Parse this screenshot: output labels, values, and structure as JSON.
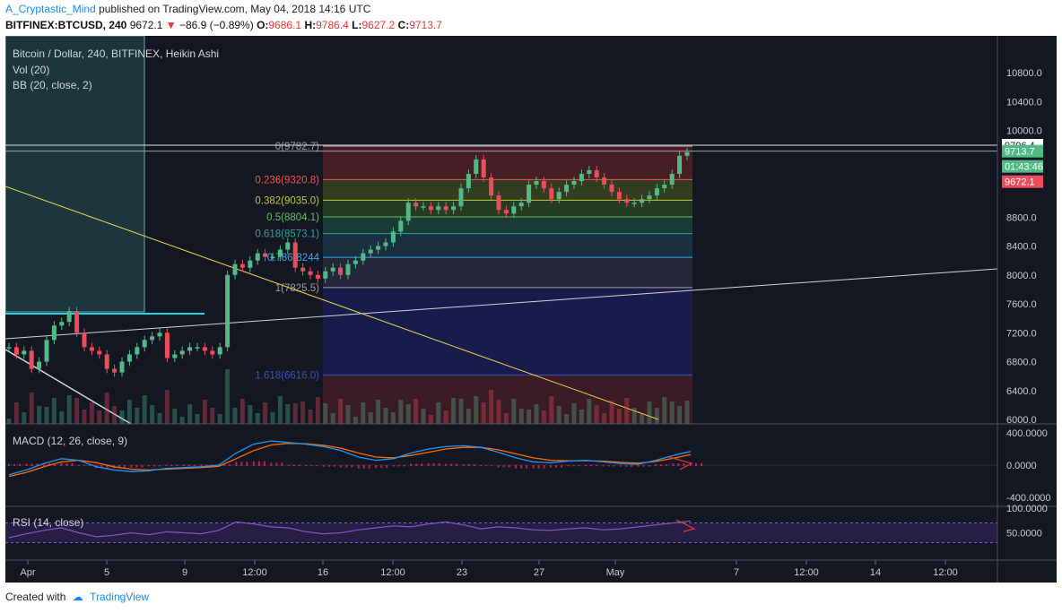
{
  "header": {
    "author": "A_Cryptastic_Mind",
    "published_on": "published on TradingView.com, May 04, 2018 14:16 UTC",
    "symbol": "BITFINEX:BTCUSD, 240",
    "last": "9672.1",
    "change": "−86.9 (−0.89%)",
    "o_label": "O:",
    "o_value": "9686.1",
    "h_label": "H:",
    "h_value": "9786.4",
    "l_label": "L:",
    "l_value": "9627.2",
    "c_label": "C:",
    "c_value": "9713.7"
  },
  "legend": {
    "line1": "Bitcoin / Dollar, 240, BITFINEX, Heikin Ashi",
    "line2": "Vol (20)",
    "line3": "BB (20, close, 2)"
  },
  "footer": {
    "created_with": "Created with",
    "brand": "TradingView"
  },
  "colors": {
    "background": "#131722",
    "up": "#53b987",
    "down": "#eb4d5c",
    "trend_yellow": "#e8d44d",
    "trend_white": "#d1d4dc",
    "cyan": "#22d3ee",
    "macd": "#2196f3",
    "signal": "#ff6d00",
    "rsi": "#7e57c2"
  },
  "chart_data": [
    {
      "type": "candlestick",
      "title": "Bitcoin / Dollar, 240, BITFINEX, Heikin Ashi",
      "ylim": [
        6000,
        11000
      ],
      "y_ticks": [
        "10800.0",
        "10400.0",
        "10000.0",
        "8800.0",
        "8400.0",
        "8000.0",
        "7600.0",
        "7200.0",
        "6800.0",
        "6400.0",
        "6000.0"
      ],
      "x_ticks": [
        "Apr",
        "5",
        "9",
        "12:00",
        "16",
        "12:00",
        "23",
        "27",
        "May",
        "7",
        "12:00",
        "14",
        "12:00"
      ],
      "price_labels": [
        {
          "text": "9796.4",
          "style": "white"
        },
        {
          "text": "9713.7",
          "style": "green"
        },
        {
          "text": "01:43:46",
          "style": "green"
        },
        {
          "text": "9672.1",
          "style": "red"
        }
      ],
      "fibonacci": [
        {
          "level": "0",
          "price": 9782.7,
          "label": "0(9782.7)",
          "color": "#9e9e9e"
        },
        {
          "level": "0.236",
          "price": 9320.8,
          "label": "0.236(9320.8)",
          "color": "#ef5350"
        },
        {
          "level": "0.382",
          "price": 9035.0,
          "label": "0.382(9035.0)",
          "color": "#c0ca33"
        },
        {
          "level": "0.5",
          "price": 8804.1,
          "label": "0.5(8804.1)",
          "color": "#66bb6a"
        },
        {
          "level": "0.618",
          "price": 8573.1,
          "label": "0.618(8573.1)",
          "color": "#26a69a"
        },
        {
          "level": "0.786",
          "price": 8244,
          "label": "0.786(8244",
          "color": "#42a5f5"
        },
        {
          "level": "1",
          "price": 7825.5,
          "label": "1(7825.5)",
          "color": "#9e9e9e"
        },
        {
          "level": "1.618",
          "price": 6616.0,
          "label": "1.618(6616.0)",
          "color": "#3f51b5"
        }
      ],
      "horizontal_lines": [
        9796.4,
        9713.7
      ],
      "close_approx": [
        7000,
        6900,
        6950,
        6700,
        6800,
        7100,
        7300,
        7350,
        7500,
        7200,
        7000,
        6950,
        6900,
        6700,
        6650,
        6800,
        6900,
        7000,
        7100,
        7150,
        7200,
        6850,
        6900,
        6950,
        7000,
        7000,
        6950,
        6900,
        7000,
        8000,
        8150,
        8100,
        8200,
        8300,
        8250,
        8250,
        8350,
        8450,
        8100,
        8050,
        8000,
        7950,
        8050,
        8100,
        8000,
        8150,
        8200,
        8300,
        8350,
        8400,
        8450,
        8600,
        8750,
        9000,
        8950,
        8950,
        8900,
        8950,
        8900,
        8950,
        9200,
        9400,
        9600,
        9350,
        9100,
        8900,
        8850,
        8950,
        9000,
        9250,
        9300,
        9200,
        9050,
        9150,
        9250,
        9300,
        9400,
        9450,
        9350,
        9250,
        9150,
        9050,
        9000,
        9000,
        9050,
        9100,
        9200,
        9250,
        9400,
        9650,
        9700
      ]
    },
    {
      "type": "line",
      "title": "MACD (12, 26, close, 9)",
      "ylim": [
        -400,
        500
      ],
      "y_ticks": [
        "400.0000",
        "0.0000",
        "-400.0000"
      ],
      "series": [
        {
          "name": "MACD",
          "values": [
            -120,
            -60,
            20,
            80,
            60,
            -20,
            -60,
            -80,
            -70,
            -40,
            -30,
            -20,
            0,
            150,
            260,
            300,
            280,
            260,
            230,
            180,
            100,
            60,
            80,
            150,
            200,
            230,
            240,
            220,
            160,
            90,
            40,
            30,
            50,
            60,
            40,
            20,
            10,
            60,
            120,
            170
          ]
        },
        {
          "name": "Signal",
          "values": [
            -140,
            -90,
            -20,
            40,
            60,
            30,
            -20,
            -50,
            -60,
            -50,
            -40,
            -30,
            -15,
            80,
            180,
            250,
            270,
            265,
            245,
            210,
            150,
            100,
            90,
            120,
            160,
            200,
            220,
            220,
            190,
            140,
            90,
            60,
            55,
            55,
            50,
            35,
            25,
            45,
            85,
            130
          ]
        }
      ]
    },
    {
      "type": "line",
      "title": "RSI (14, close)",
      "ylim": [
        0,
        100
      ],
      "y_ticks": [
        "100.0000",
        "50.0000"
      ],
      "bands": [
        70,
        30
      ],
      "series": [
        {
          "name": "RSI",
          "values": [
            40,
            48,
            55,
            60,
            50,
            42,
            45,
            50,
            46,
            52,
            50,
            48,
            55,
            72,
            68,
            62,
            60,
            52,
            48,
            50,
            56,
            60,
            64,
            62,
            68,
            72,
            66,
            58,
            62,
            60,
            56,
            55,
            58,
            60,
            56,
            58,
            62,
            66,
            70,
            74
          ]
        }
      ]
    }
  ]
}
